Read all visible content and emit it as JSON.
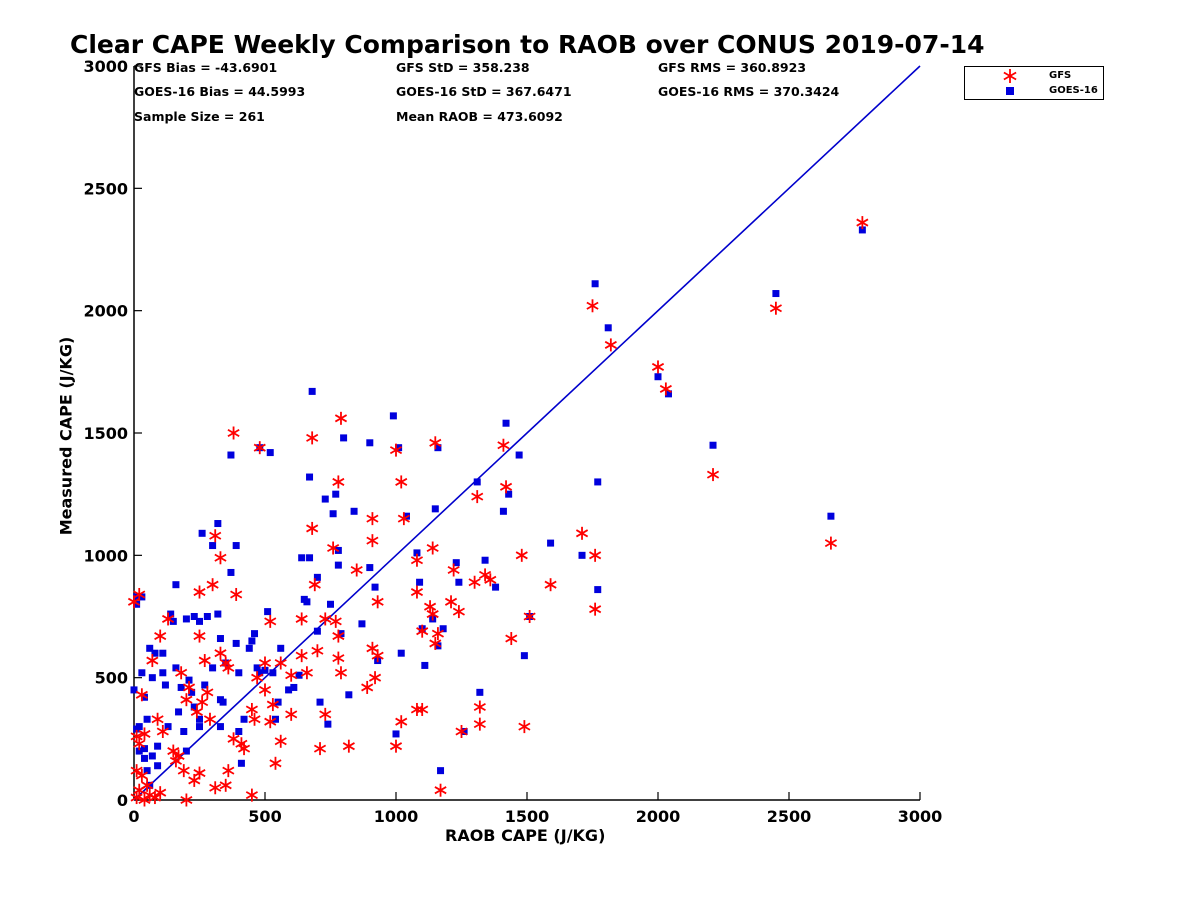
{
  "chart_data": {
    "type": "scatter",
    "title": "Clear CAPE Weekly Comparison to RAOB over CONUS 2019-07-14",
    "xlabel": "RAOB CAPE (J/KG)",
    "ylabel": "Measured CAPE (J/KG)",
    "xlim": [
      0,
      3000
    ],
    "ylim": [
      0,
      3000
    ],
    "xticks": [
      "0",
      "500",
      "1000",
      "1500",
      "2000",
      "2500",
      "3000"
    ],
    "yticks": [
      "0",
      "500",
      "1000",
      "1500",
      "2000",
      "2500",
      "3000"
    ],
    "grid": false,
    "legend_position": "top-right outside",
    "reference_line": {
      "from": [
        0,
        0
      ],
      "to": [
        3000,
        3000
      ],
      "color": "#0000cc"
    },
    "stats": {
      "gfs_bias": "GFS Bias = -43.6901",
      "gfs_std": "GFS StD = 358.238",
      "gfs_rms": "GFS RMS = 360.8923",
      "goes_bias": "GOES-16 Bias = 44.5993",
      "goes_std": "GOES-16 StD = 367.6471",
      "goes_rms": "GOES-16 RMS = 370.3424",
      "sample_size": "Sample Size = 261",
      "mean_raob": "Mean RAOB = 473.6092"
    },
    "series": [
      {
        "name": "GFS",
        "marker": "asterisk",
        "color": "#ff0000",
        "points": [
          [
            0,
            810
          ],
          [
            20,
            840
          ],
          [
            10,
            260
          ],
          [
            30,
            430
          ],
          [
            20,
            230
          ],
          [
            40,
            270
          ],
          [
            10,
            120
          ],
          [
            30,
            100
          ],
          [
            50,
            60
          ],
          [
            20,
            40
          ],
          [
            60,
            20
          ],
          [
            80,
            10
          ],
          [
            100,
            30
          ],
          [
            40,
            0
          ],
          [
            10,
            10
          ],
          [
            70,
            570
          ],
          [
            100,
            670
          ],
          [
            130,
            740
          ],
          [
            90,
            330
          ],
          [
            110,
            280
          ],
          [
            150,
            200
          ],
          [
            160,
            160
          ],
          [
            170,
            180
          ],
          [
            180,
            520
          ],
          [
            200,
            410
          ],
          [
            210,
            460
          ],
          [
            190,
            120
          ],
          [
            200,
            0
          ],
          [
            230,
            80
          ],
          [
            250,
            110
          ],
          [
            240,
            360
          ],
          [
            260,
            400
          ],
          [
            270,
            570
          ],
          [
            280,
            440
          ],
          [
            290,
            330
          ],
          [
            300,
            880
          ],
          [
            250,
            850
          ],
          [
            250,
            670
          ],
          [
            310,
            1080
          ],
          [
            330,
            990
          ],
          [
            330,
            600
          ],
          [
            350,
            560
          ],
          [
            360,
            540
          ],
          [
            380,
            250
          ],
          [
            380,
            1500
          ],
          [
            390,
            840
          ],
          [
            360,
            120
          ],
          [
            350,
            60
          ],
          [
            310,
            50
          ],
          [
            410,
            230
          ],
          [
            420,
            210
          ],
          [
            450,
            20
          ],
          [
            450,
            370
          ],
          [
            460,
            330
          ],
          [
            470,
            500
          ],
          [
            480,
            1440
          ],
          [
            500,
            560
          ],
          [
            500,
            450
          ],
          [
            520,
            730
          ],
          [
            520,
            320
          ],
          [
            530,
            390
          ],
          [
            540,
            150
          ],
          [
            560,
            560
          ],
          [
            560,
            240
          ],
          [
            600,
            510
          ],
          [
            600,
            350
          ],
          [
            640,
            740
          ],
          [
            640,
            590
          ],
          [
            660,
            520
          ],
          [
            680,
            1110
          ],
          [
            680,
            1480
          ],
          [
            690,
            880
          ],
          [
            700,
            610
          ],
          [
            710,
            210
          ],
          [
            730,
            740
          ],
          [
            730,
            350
          ],
          [
            760,
            1030
          ],
          [
            770,
            730
          ],
          [
            780,
            1300
          ],
          [
            780,
            580
          ],
          [
            780,
            670
          ],
          [
            790,
            1560
          ],
          [
            790,
            520
          ],
          [
            820,
            220
          ],
          [
            850,
            940
          ],
          [
            890,
            460
          ],
          [
            910,
            1150
          ],
          [
            910,
            1060
          ],
          [
            910,
            620
          ],
          [
            920,
            500
          ],
          [
            930,
            810
          ],
          [
            930,
            590
          ],
          [
            1000,
            1430
          ],
          [
            1000,
            220
          ],
          [
            1020,
            1300
          ],
          [
            1020,
            320
          ],
          [
            1030,
            1150
          ],
          [
            1080,
            980
          ],
          [
            1080,
            850
          ],
          [
            1080,
            370
          ],
          [
            1100,
            370
          ],
          [
            1100,
            690
          ],
          [
            1130,
            790
          ],
          [
            1140,
            760
          ],
          [
            1140,
            1030
          ],
          [
            1150,
            1460
          ],
          [
            1150,
            640
          ],
          [
            1160,
            680
          ],
          [
            1170,
            40
          ],
          [
            1210,
            810
          ],
          [
            1220,
            940
          ],
          [
            1240,
            770
          ],
          [
            1250,
            280
          ],
          [
            1300,
            890
          ],
          [
            1310,
            1240
          ],
          [
            1320,
            380
          ],
          [
            1320,
            310
          ],
          [
            1340,
            920
          ],
          [
            1360,
            900
          ],
          [
            1410,
            1450
          ],
          [
            1420,
            1280
          ],
          [
            1440,
            660
          ],
          [
            1480,
            1000
          ],
          [
            1490,
            300
          ],
          [
            1510,
            750
          ],
          [
            1590,
            880
          ],
          [
            1710,
            1090
          ],
          [
            1750,
            2020
          ],
          [
            1760,
            1000
          ],
          [
            1760,
            780
          ],
          [
            1820,
            1860
          ],
          [
            2000,
            1770
          ],
          [
            2030,
            1680
          ],
          [
            2210,
            1330
          ],
          [
            2450,
            2010
          ],
          [
            2660,
            1050
          ],
          [
            2780,
            2360
          ]
        ]
      },
      {
        "name": "GOES-16",
        "marker": "square",
        "color": "#0000dd",
        "points": [
          [
            0,
            450
          ],
          [
            10,
            830
          ],
          [
            10,
            800
          ],
          [
            30,
            830
          ],
          [
            10,
            290
          ],
          [
            20,
            300
          ],
          [
            20,
            200
          ],
          [
            30,
            520
          ],
          [
            40,
            210
          ],
          [
            40,
            170
          ],
          [
            40,
            420
          ],
          [
            50,
            120
          ],
          [
            50,
            330
          ],
          [
            60,
            620
          ],
          [
            60,
            60
          ],
          [
            70,
            180
          ],
          [
            70,
            500
          ],
          [
            80,
            600
          ],
          [
            90,
            220
          ],
          [
            90,
            140
          ],
          [
            110,
            600
          ],
          [
            110,
            520
          ],
          [
            120,
            470
          ],
          [
            130,
            300
          ],
          [
            140,
            760
          ],
          [
            150,
            730
          ],
          [
            160,
            880
          ],
          [
            160,
            540
          ],
          [
            170,
            360
          ],
          [
            180,
            460
          ],
          [
            190,
            280
          ],
          [
            200,
            740
          ],
          [
            200,
            200
          ],
          [
            210,
            490
          ],
          [
            220,
            440
          ],
          [
            230,
            380
          ],
          [
            230,
            750
          ],
          [
            250,
            730
          ],
          [
            250,
            330
          ],
          [
            250,
            300
          ],
          [
            260,
            1090
          ],
          [
            270,
            470
          ],
          [
            280,
            750
          ],
          [
            300,
            540
          ],
          [
            300,
            1040
          ],
          [
            320,
            1130
          ],
          [
            320,
            760
          ],
          [
            330,
            660
          ],
          [
            330,
            410
          ],
          [
            330,
            300
          ],
          [
            340,
            400
          ],
          [
            350,
            560
          ],
          [
            370,
            930
          ],
          [
            370,
            1410
          ],
          [
            390,
            1040
          ],
          [
            390,
            640
          ],
          [
            400,
            520
          ],
          [
            400,
            280
          ],
          [
            410,
            150
          ],
          [
            420,
            330
          ],
          [
            440,
            620
          ],
          [
            450,
            650
          ],
          [
            460,
            680
          ],
          [
            470,
            540
          ],
          [
            480,
            520
          ],
          [
            480,
            1440
          ],
          [
            500,
            530
          ],
          [
            510,
            770
          ],
          [
            520,
            1420
          ],
          [
            530,
            520
          ],
          [
            540,
            330
          ],
          [
            550,
            400
          ],
          [
            560,
            620
          ],
          [
            590,
            450
          ],
          [
            610,
            460
          ],
          [
            630,
            510
          ],
          [
            640,
            990
          ],
          [
            650,
            820
          ],
          [
            660,
            810
          ],
          [
            670,
            990
          ],
          [
            670,
            1320
          ],
          [
            680,
            1670
          ],
          [
            700,
            910
          ],
          [
            700,
            690
          ],
          [
            710,
            400
          ],
          [
            730,
            1230
          ],
          [
            740,
            310
          ],
          [
            750,
            800
          ],
          [
            760,
            1170
          ],
          [
            770,
            1250
          ],
          [
            780,
            1020
          ],
          [
            780,
            960
          ],
          [
            790,
            680
          ],
          [
            800,
            1480
          ],
          [
            820,
            430
          ],
          [
            840,
            1180
          ],
          [
            870,
            720
          ],
          [
            900,
            1460
          ],
          [
            900,
            950
          ],
          [
            920,
            870
          ],
          [
            930,
            570
          ],
          [
            990,
            1570
          ],
          [
            1000,
            270
          ],
          [
            1010,
            1440
          ],
          [
            1020,
            600
          ],
          [
            1040,
            1160
          ],
          [
            1080,
            1010
          ],
          [
            1090,
            890
          ],
          [
            1100,
            700
          ],
          [
            1110,
            550
          ],
          [
            1140,
            740
          ],
          [
            1150,
            1190
          ],
          [
            1160,
            1440
          ],
          [
            1160,
            630
          ],
          [
            1170,
            120
          ],
          [
            1180,
            700
          ],
          [
            1230,
            970
          ],
          [
            1240,
            890
          ],
          [
            1260,
            280
          ],
          [
            1310,
            1300
          ],
          [
            1320,
            440
          ],
          [
            1340,
            980
          ],
          [
            1380,
            870
          ],
          [
            1410,
            1180
          ],
          [
            1420,
            1540
          ],
          [
            1430,
            1250
          ],
          [
            1470,
            1410
          ],
          [
            1490,
            590
          ],
          [
            1510,
            750
          ],
          [
            1590,
            1050
          ],
          [
            1710,
            1000
          ],
          [
            1760,
            2110
          ],
          [
            1770,
            1300
          ],
          [
            1770,
            860
          ],
          [
            1810,
            1930
          ],
          [
            2000,
            1730
          ],
          [
            2040,
            1660
          ],
          [
            2210,
            1450
          ],
          [
            2450,
            2070
          ],
          [
            2660,
            1160
          ],
          [
            2780,
            2330
          ]
        ]
      }
    ]
  }
}
